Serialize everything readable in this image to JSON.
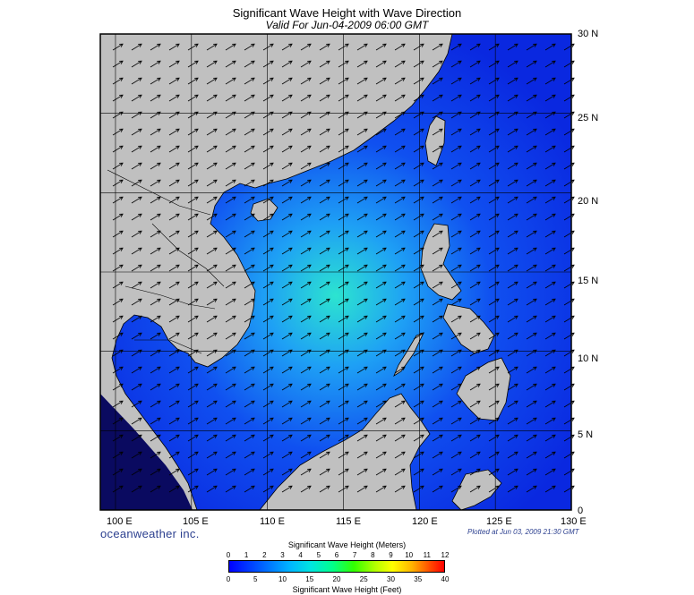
{
  "title": "Significant Wave Height with Wave Direction",
  "subtitle": "Valid For Jun-04-2009 06:00 GMT",
  "map": {
    "lon_range": [
      99,
      130
    ],
    "lat_range": [
      0,
      30
    ],
    "lon_labels": [
      "100 E",
      "105 E",
      "110 E",
      "115 E",
      "120 E",
      "125 E",
      "130 E"
    ],
    "lat_labels": [
      "30 N",
      "25 N",
      "20 N",
      "15 N",
      "10 N",
      "5 N",
      "0"
    ],
    "wave_direction": "northeast",
    "colors": {
      "land": "#c0c0c0",
      "coast": "#000000",
      "sea_low": "#0a32e6",
      "sea_mid": "#1e82ff",
      "sea_high": "#28e0d0",
      "arrow": "#000000"
    }
  },
  "footer": {
    "logo": "oceanweather inc.",
    "plotted": "Plotted at Jun 03, 2009 21:30 GMT"
  },
  "scale": {
    "meters_title": "Significant Wave Height (Meters)",
    "meters_ticks": [
      "0",
      "1",
      "2",
      "3",
      "4",
      "5",
      "6",
      "7",
      "8",
      "9",
      "10",
      "11",
      "12"
    ],
    "feet_ticks": [
      "0",
      "5",
      "10",
      "15",
      "20",
      "25",
      "30",
      "35",
      "40"
    ],
    "feet_title": "Significant Wave Height (Feet)"
  }
}
